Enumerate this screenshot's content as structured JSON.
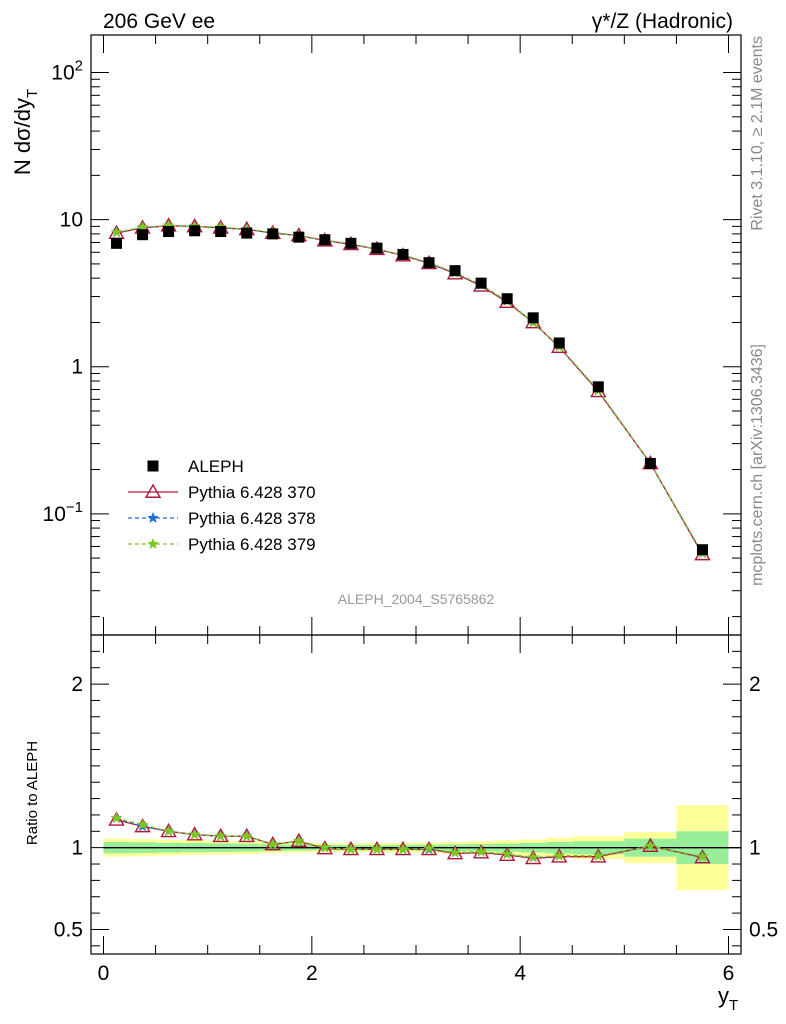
{
  "header": {
    "left": "206 GeV ee",
    "right": "γ*/Z (Hadronic)"
  },
  "side_text": {
    "upper": "Rivet 3.1.10, ≥ 2.1M events",
    "lower": "mcplots.cern.ch [arXiv:1306.3436]"
  },
  "watermark": "ALEPH_2004_S5765862",
  "chart_data": [
    {
      "type": "scatter",
      "panel": "main",
      "ylabel": "N dσ/dy",
      "ylabel_sub": "T",
      "yscale": "log",
      "ylim": [
        0.015,
        180
      ],
      "xlim": [
        -0.12,
        6.12
      ],
      "ytick_labels": [
        {
          "value": 0.1,
          "base": "10",
          "exp": "−1"
        },
        {
          "value": 1,
          "text": "1"
        },
        {
          "value": 10,
          "text": "10"
        },
        {
          "value": 100,
          "base": "10",
          "exp": "2"
        }
      ],
      "legend": {
        "placement": "lower-left",
        "entries": [
          "ALEPH",
          "Pythia 6.428 370",
          "Pythia 6.428 378",
          "Pythia 6.428 379"
        ]
      },
      "x": [
        0.125,
        0.375,
        0.625,
        0.875,
        1.125,
        1.375,
        1.625,
        1.875,
        2.125,
        2.375,
        2.625,
        2.875,
        3.125,
        3.375,
        3.625,
        3.875,
        4.125,
        4.375,
        4.75,
        5.25,
        5.75
      ],
      "series": [
        {
          "name": "ALEPH",
          "color": "#000000",
          "marker": "square",
          "values": [
            6.9,
            7.9,
            8.3,
            8.4,
            8.3,
            8.1,
            8.0,
            7.6,
            7.3,
            6.9,
            6.4,
            5.8,
            5.1,
            4.5,
            3.7,
            2.9,
            2.15,
            1.45,
            0.73,
            0.22,
            0.057
          ]
        },
        {
          "name": "Pythia 6.428 370",
          "color": "#b0163a",
          "marker": "triangle-open",
          "line": "solid",
          "values": [
            8.1,
            8.8,
            9.1,
            9.0,
            8.8,
            8.6,
            8.1,
            7.8,
            7.2,
            6.8,
            6.3,
            5.7,
            5.05,
            4.3,
            3.55,
            2.75,
            2.0,
            1.36,
            0.68,
            0.22,
            0.053
          ]
        },
        {
          "name": "Pythia 6.428 378",
          "color": "#1f6fd6",
          "marker": "star",
          "line": "dashed",
          "values": [
            8.2,
            8.8,
            9.1,
            9.0,
            8.8,
            8.6,
            8.1,
            7.8,
            7.25,
            6.8,
            6.3,
            5.75,
            5.05,
            4.35,
            3.6,
            2.8,
            2.0,
            1.37,
            0.69,
            0.22,
            0.054
          ]
        },
        {
          "name": "Pythia 6.428 379",
          "color": "#7cc820",
          "marker": "star",
          "line": "dashed",
          "values": [
            8.2,
            8.9,
            9.1,
            9.0,
            8.9,
            8.6,
            8.2,
            7.8,
            7.25,
            6.85,
            6.3,
            5.75,
            5.1,
            4.35,
            3.6,
            2.8,
            2.0,
            1.37,
            0.69,
            0.22,
            0.054
          ]
        }
      ]
    },
    {
      "type": "line",
      "panel": "ratio",
      "ylabel": "Ratio to ALEPH",
      "xlabel": "y",
      "xlabel_sub": "T",
      "ylim": [
        0.35,
        2.3
      ],
      "xlim": [
        -0.12,
        6.12
      ],
      "xticks": [
        0,
        2,
        4,
        6
      ],
      "yticks": [
        0.5,
        1,
        2
      ],
      "ytick_labels": [
        "0.5",
        "1",
        "2"
      ],
      "xtick_labels": [
        "0",
        "2",
        "4",
        "6"
      ],
      "bands": {
        "edges": [
          0,
          0.25,
          0.5,
          0.75,
          1.0,
          1.25,
          1.5,
          1.75,
          2.0,
          2.25,
          2.5,
          2.75,
          3.0,
          3.25,
          3.5,
          3.75,
          4.0,
          4.25,
          4.5,
          5.0,
          5.5,
          6.0
        ],
        "yellow": [
          0.055,
          0.052,
          0.048,
          0.045,
          0.042,
          0.04,
          0.035,
          0.03,
          0.028,
          0.028,
          0.028,
          0.03,
          0.032,
          0.035,
          0.04,
          0.045,
          0.05,
          0.06,
          0.07,
          0.095,
          0.26
        ],
        "green": [
          0.035,
          0.033,
          0.03,
          0.028,
          0.026,
          0.024,
          0.02,
          0.018,
          0.016,
          0.016,
          0.016,
          0.017,
          0.018,
          0.02,
          0.022,
          0.025,
          0.03,
          0.035,
          0.04,
          0.055,
          0.1
        ]
      },
      "x": [
        0.125,
        0.375,
        0.625,
        0.875,
        1.125,
        1.375,
        1.625,
        1.875,
        2.125,
        2.375,
        2.625,
        2.875,
        3.125,
        3.375,
        3.625,
        3.875,
        4.125,
        4.375,
        4.75,
        5.25,
        5.75
      ],
      "series": [
        {
          "name": "Pythia 6.428 370",
          "color": "#b0163a",
          "marker": "triangle-open",
          "values": [
            1.17,
            1.13,
            1.1,
            1.08,
            1.07,
            1.07,
            1.02,
            1.04,
            0.995,
            0.99,
            0.99,
            0.99,
            0.99,
            0.965,
            0.97,
            0.955,
            0.935,
            0.945,
            0.945,
            1.01,
            0.94
          ]
        },
        {
          "name": "Pythia 6.428 378",
          "color": "#1f6fd6",
          "marker": "star",
          "values": [
            1.18,
            1.13,
            1.1,
            1.08,
            1.07,
            1.07,
            1.02,
            1.04,
            1.0,
            0.99,
            0.99,
            0.99,
            0.99,
            0.97,
            0.975,
            0.96,
            0.94,
            0.95,
            0.95,
            1.01,
            0.945
          ]
        },
        {
          "name": "Pythia 6.428 379",
          "color": "#7cc820",
          "marker": "star",
          "values": [
            1.18,
            1.14,
            1.1,
            1.08,
            1.07,
            1.07,
            1.02,
            1.04,
            1.0,
            0.99,
            0.99,
            0.99,
            0.995,
            0.97,
            0.975,
            0.96,
            0.94,
            0.95,
            0.95,
            1.01,
            0.945
          ]
        }
      ]
    }
  ]
}
